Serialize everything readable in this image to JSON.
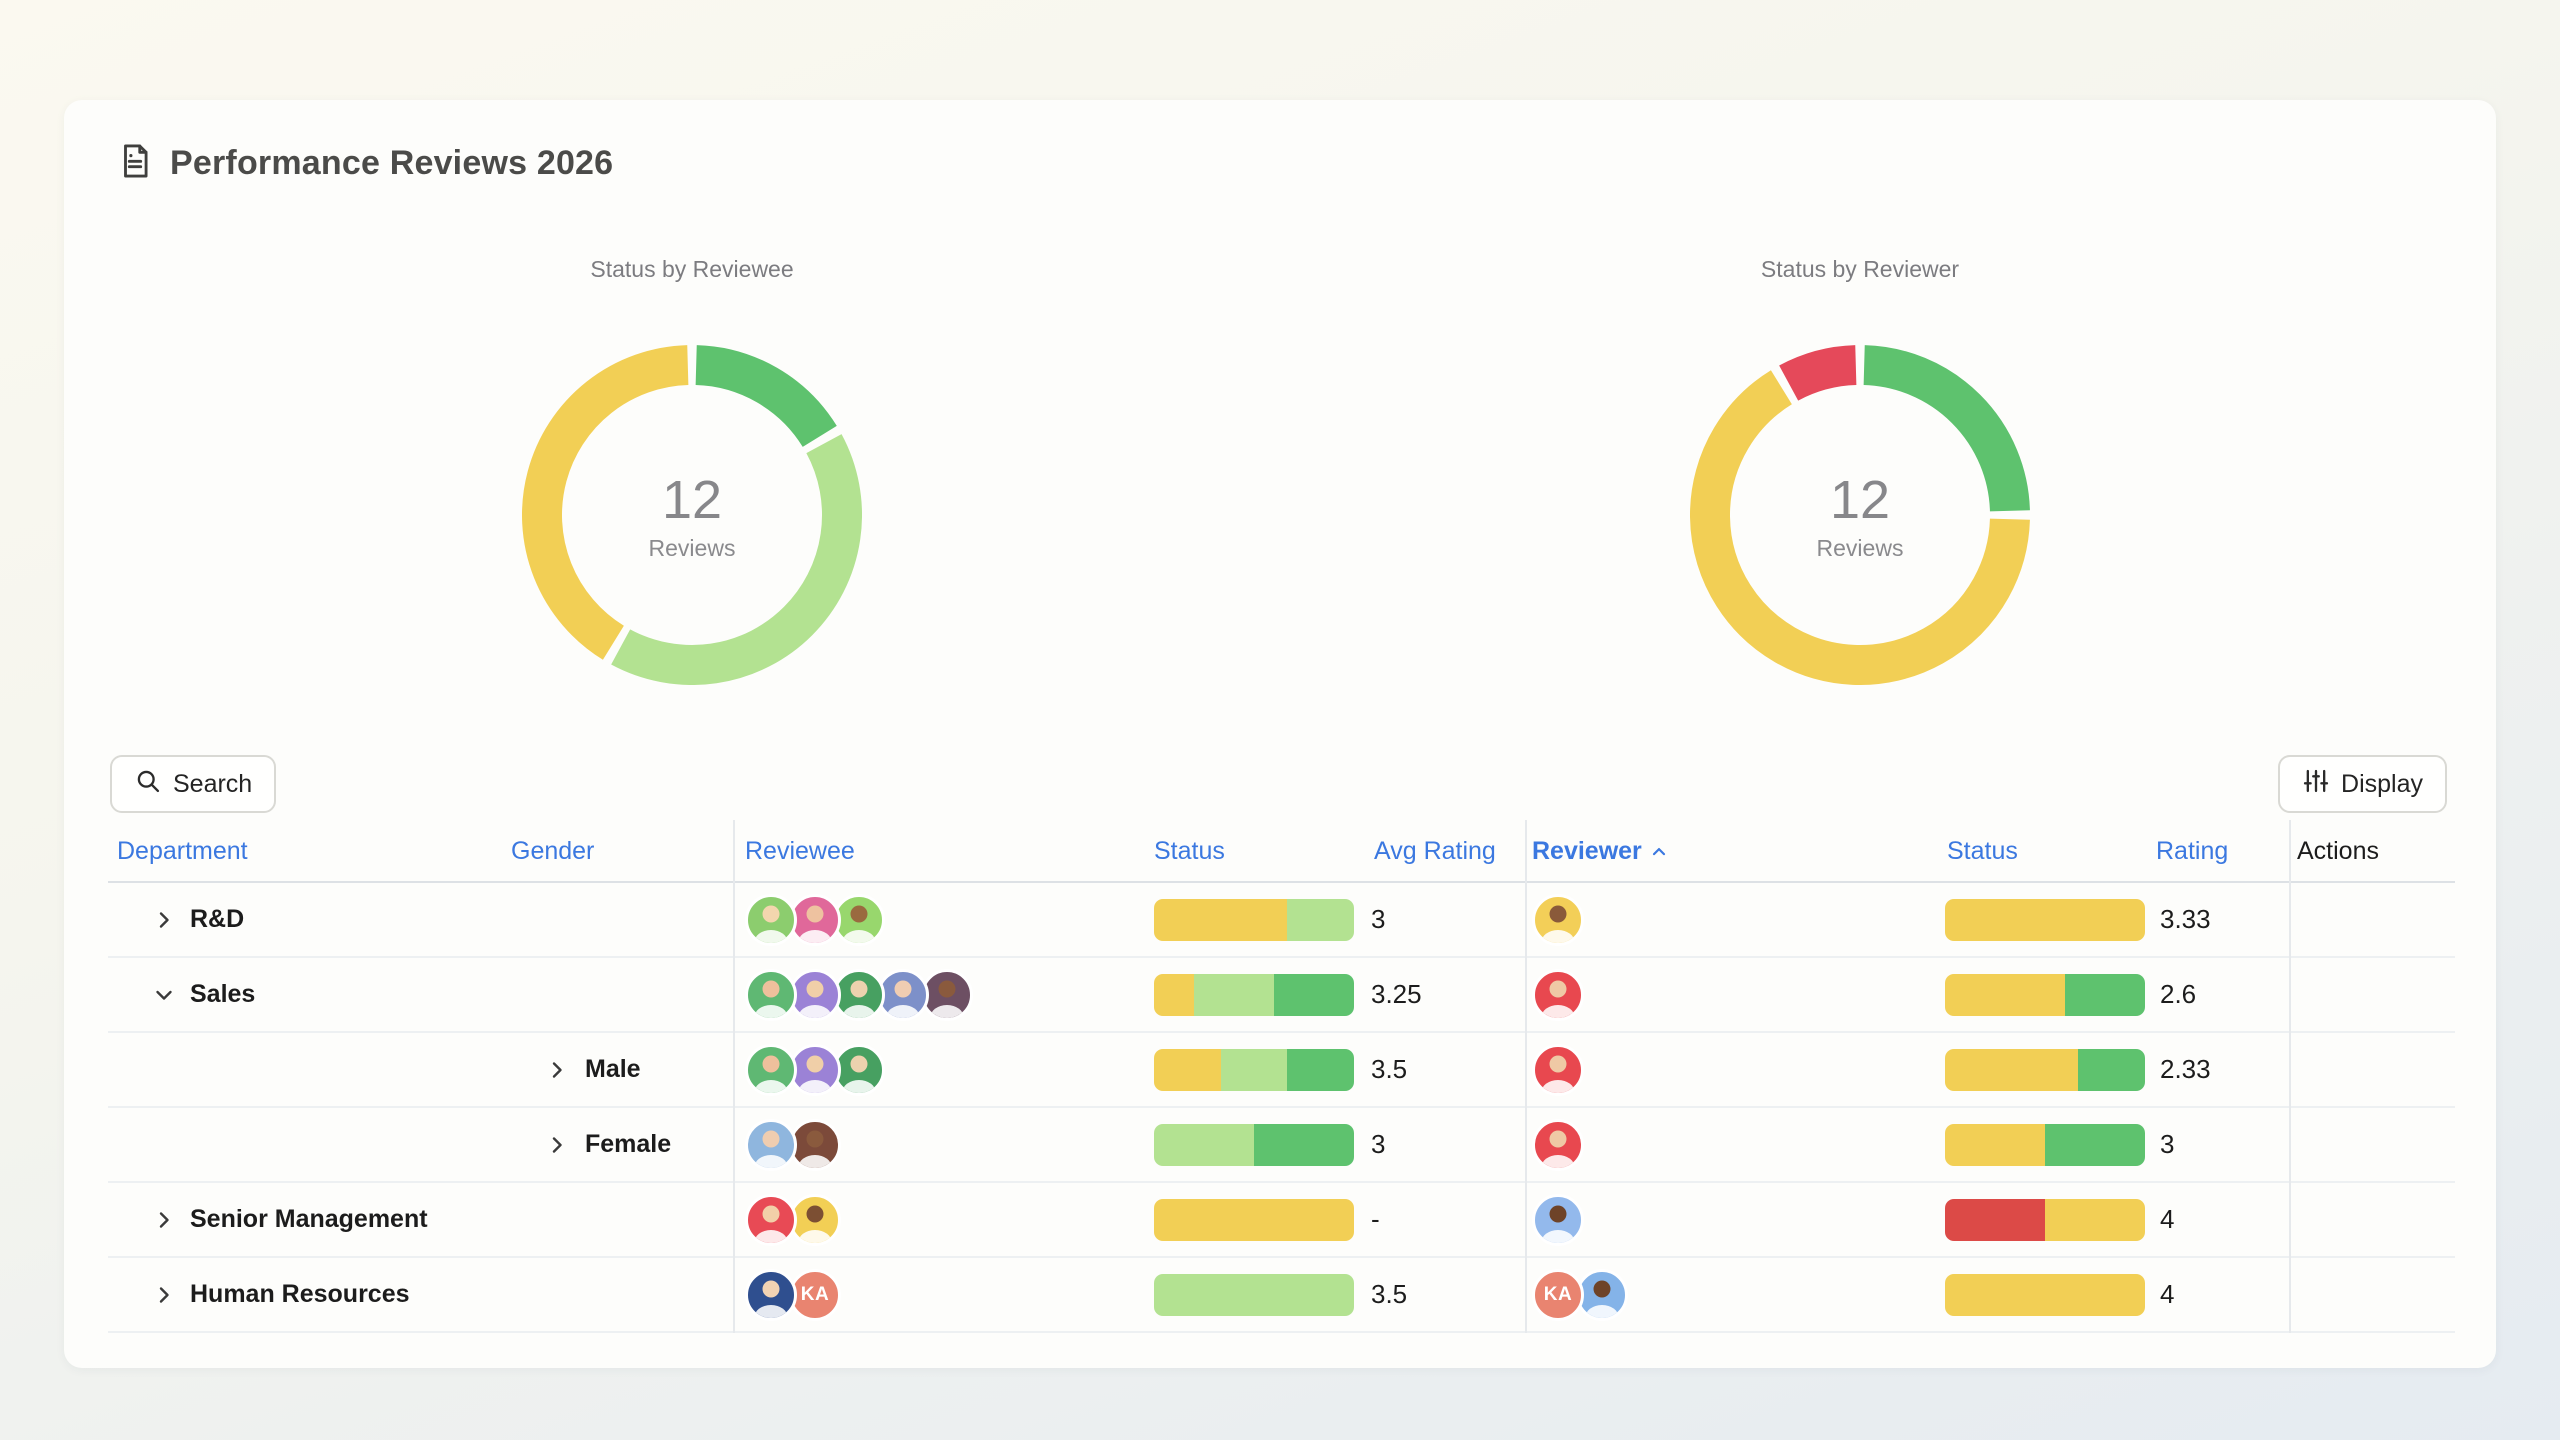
{
  "page": {
    "title": "Performance Reviews 2026"
  },
  "icons": {
    "title": "document-icon",
    "search": "search-icon",
    "display": "sliders-icon",
    "collapsed_row": "chevron-right-icon",
    "expanded_row": "chevron-down-icon",
    "sort": "chevron-up-icon"
  },
  "colors": {
    "accent_blue": "#3b78e0",
    "status_yellow": "#f2cf55",
    "status_light_green": "#b3e291",
    "status_green": "#5ec26e",
    "status_red": "#dc4a47",
    "donut_red": "#e5495a"
  },
  "chart_data": [
    {
      "type": "pie",
      "title": "Status by Reviewee",
      "center_value": "12",
      "center_label": "Reviews",
      "note": "donut, segments clockwise from top, units = reviews",
      "labels": [
        "green",
        "light-green",
        "yellow"
      ],
      "values": [
        2,
        5,
        5
      ],
      "segments": [
        {
          "color": "#5ec26e",
          "value": 2
        },
        {
          "color": "#b3e291",
          "value": 5
        },
        {
          "color": "#f2cf55",
          "value": 5
        }
      ]
    },
    {
      "type": "pie",
      "title": "Status by Reviewer",
      "center_value": "12",
      "center_label": "Reviews",
      "note": "donut, segments clockwise from top, units = reviews",
      "labels": [
        "green",
        "yellow",
        "red"
      ],
      "values": [
        3,
        8,
        1
      ],
      "segments": [
        {
          "color": "#5ec26e",
          "value": 3
        },
        {
          "color": "#f2cf55",
          "value": 8
        },
        {
          "color": "#e5495a",
          "value": 1
        }
      ]
    }
  ],
  "toolbar": {
    "search_label": "Search",
    "display_label": "Display"
  },
  "table": {
    "headers": [
      {
        "label": "Department"
      },
      {
        "label": "Gender"
      },
      {
        "label": "Reviewee"
      },
      {
        "label": "Status"
      },
      {
        "label": "Avg Rating"
      },
      {
        "label": "Reviewer",
        "sorted": "asc",
        "bold": true
      },
      {
        "label": "Status"
      },
      {
        "label": "Rating"
      },
      {
        "label": "Actions",
        "plain": true
      }
    ],
    "rows": [
      {
        "level": 0,
        "expanded": false,
        "label": "R&D",
        "reviewees": [
          {
            "bg": "#8ccd6e",
            "skin": "#f3d6ae"
          },
          {
            "bg": "#e0689a",
            "skin": "#eec2a0"
          },
          {
            "bg": "#98d76d",
            "skin": "#9a6a3f"
          }
        ],
        "reviewee_status": [
          {
            "color": "#f2cf55",
            "weight": 2
          },
          {
            "color": "#b3e291",
            "weight": 1
          }
        ],
        "avg_rating": "3",
        "reviewers": [
          {
            "bg": "#f3cf58",
            "skin": "#8a5a3a"
          }
        ],
        "reviewer_status": [
          {
            "color": "#f2cf55",
            "weight": 1
          }
        ],
        "rating": "3.33"
      },
      {
        "level": 0,
        "expanded": true,
        "label": "Sales",
        "reviewees": [
          {
            "bg": "#5fb873",
            "skin": "#eec09c"
          },
          {
            "bg": "#9b82d6",
            "skin": "#f0cfa8"
          },
          {
            "bg": "#47a061",
            "skin": "#ecd2ae"
          },
          {
            "bg": "#7d90c9",
            "skin": "#f0cdb2"
          },
          {
            "bg": "#6d4f63",
            "skin": "#8a5a3d"
          }
        ],
        "reviewee_status": [
          {
            "color": "#f2cf55",
            "weight": 1
          },
          {
            "color": "#b3e291",
            "weight": 2
          },
          {
            "color": "#5ec26e",
            "weight": 2
          }
        ],
        "avg_rating": "3.25",
        "reviewers": [
          {
            "bg": "#e8484f",
            "skin": "#efc9a5"
          }
        ],
        "reviewer_status": [
          {
            "color": "#f2cf55",
            "weight": 3
          },
          {
            "color": "#5ec26e",
            "weight": 2
          }
        ],
        "rating": "2.6"
      },
      {
        "level": 1,
        "expanded": false,
        "label": "Male",
        "reviewees": [
          {
            "bg": "#5fb873",
            "skin": "#eec09c"
          },
          {
            "bg": "#9b82d6",
            "skin": "#f0cfa8"
          },
          {
            "bg": "#47a061",
            "skin": "#ecd2ae"
          }
        ],
        "reviewee_status": [
          {
            "color": "#f2cf55",
            "weight": 1
          },
          {
            "color": "#b3e291",
            "weight": 1
          },
          {
            "color": "#5ec26e",
            "weight": 1
          }
        ],
        "avg_rating": "3.5",
        "reviewers": [
          {
            "bg": "#e8484f",
            "skin": "#efc9a5"
          }
        ],
        "reviewer_status": [
          {
            "color": "#f2cf55",
            "weight": 2
          },
          {
            "color": "#5ec26e",
            "weight": 1
          }
        ],
        "rating": "2.33"
      },
      {
        "level": 1,
        "expanded": false,
        "label": "Female",
        "reviewees": [
          {
            "bg": "#8fb6de",
            "skin": "#efcdb0"
          },
          {
            "bg": "#7c4a3a",
            "skin": "#8a5a3d"
          }
        ],
        "reviewee_status": [
          {
            "color": "#b3e291",
            "weight": 1
          },
          {
            "color": "#5ec26e",
            "weight": 1
          }
        ],
        "avg_rating": "3",
        "reviewers": [
          {
            "bg": "#e8484f",
            "skin": "#efc9a5"
          }
        ],
        "reviewer_status": [
          {
            "color": "#f2cf55",
            "weight": 1
          },
          {
            "color": "#5ec26e",
            "weight": 1
          }
        ],
        "rating": "3"
      },
      {
        "level": 0,
        "expanded": false,
        "label": "Senior Management",
        "reviewees": [
          {
            "bg": "#e84a55",
            "skin": "#f2cfa8"
          },
          {
            "bg": "#f2cf55",
            "skin": "#7c4f33"
          }
        ],
        "reviewee_status": [
          {
            "color": "#f2cf55",
            "weight": 1
          }
        ],
        "avg_rating": "-",
        "reviewers": [
          {
            "bg": "#93b9ec",
            "skin": "#6e4328"
          }
        ],
        "reviewer_status": [
          {
            "color": "#dc4a47",
            "weight": 1
          },
          {
            "color": "#f2cf55",
            "weight": 1
          }
        ],
        "rating": "4"
      },
      {
        "level": 0,
        "expanded": false,
        "label": "Human Resources",
        "reviewees": [
          {
            "bg": "#2f4f8f",
            "skin": "#f2d3b3"
          },
          {
            "bg": "#e98470",
            "initials": "KA"
          }
        ],
        "reviewee_status": [
          {
            "color": "#b3e291",
            "weight": 1
          }
        ],
        "avg_rating": "3.5",
        "reviewers": [
          {
            "bg": "#e98470",
            "initials": "KA"
          },
          {
            "bg": "#84b3e8",
            "skin": "#6e4328"
          }
        ],
        "reviewer_status": [
          {
            "color": "#f2cf55",
            "weight": 1
          }
        ],
        "rating": "4"
      }
    ]
  }
}
